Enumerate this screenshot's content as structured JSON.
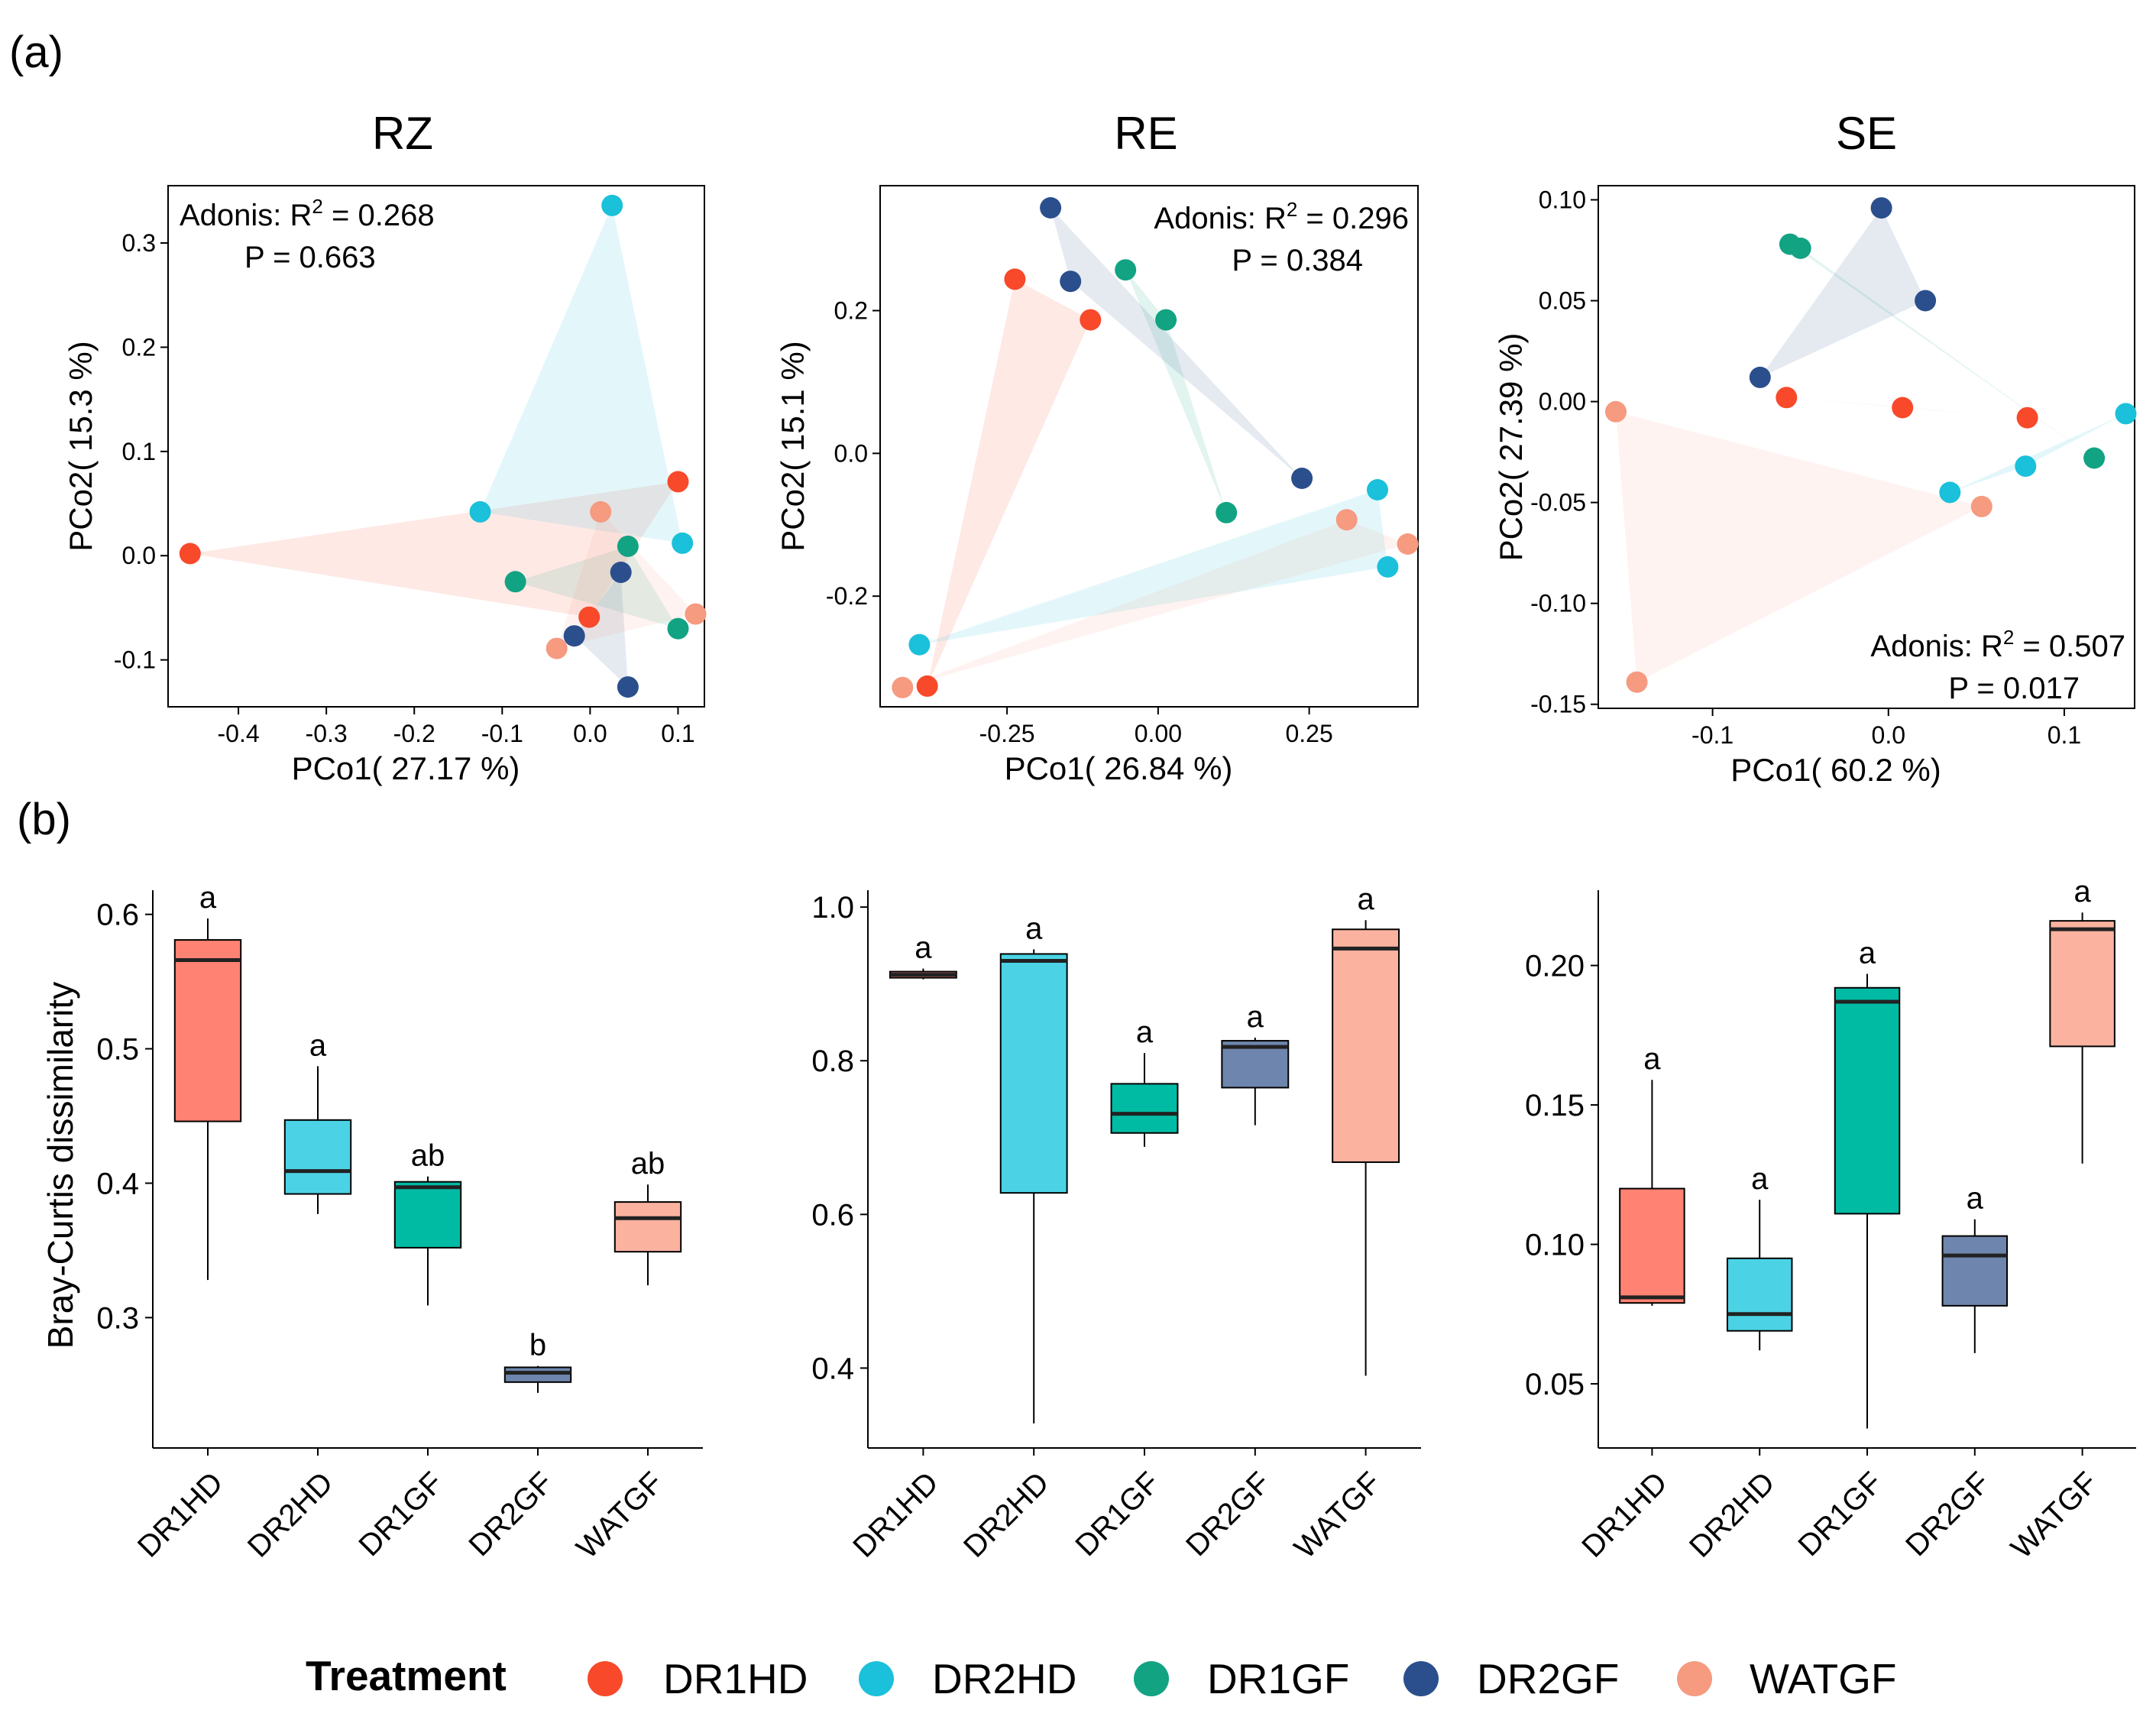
{
  "panel_labels": {
    "a": "(a)",
    "b": "(b)"
  },
  "legend": {
    "title": "Treatment",
    "entries": [
      "DR1HD",
      "DR2HD",
      "DR1GF",
      "DR2GF",
      "WATGF"
    ]
  },
  "colors": {
    "DR1HD": "#F8492B",
    "DR2HD": "#1BC0DA",
    "DR1GF": "#12A383",
    "DR2GF": "#2A4F8C",
    "WATGF": "#F69A80"
  },
  "box_colors": {
    "DR1HD": "#FF8272",
    "DR2HD": "#4BD3E5",
    "DR1GF": "#00BBA4",
    "DR2GF": "#6E86AD",
    "WATGF": "#FBB3A0"
  },
  "chart_data": [
    {
      "id": "pcoa-RZ",
      "type": "scatter",
      "title": "RZ",
      "xlabel": "PCo1( 27.17 %)",
      "ylabel": "PCo2( 15.3 %)",
      "xlim": [
        -0.48,
        0.13
      ],
      "ylim": [
        -0.145,
        0.355
      ],
      "xticks": [
        -0.4,
        -0.3,
        -0.2,
        -0.1,
        0.0,
        0.1
      ],
      "xtick_labels": [
        "-0.4",
        "-0.3",
        "-0.2",
        "-0.1",
        "0.0",
        "0.1"
      ],
      "yticks": [
        -0.1,
        0.0,
        0.1,
        0.2,
        0.3
      ],
      "ytick_labels": [
        "-0.1",
        "0.0",
        "0.1",
        "0.2",
        "0.3"
      ],
      "annotation": {
        "stat_label": "Adonis: R",
        "stat_exp": "2",
        "stat_value": " = 0.268",
        "p_text": "P = 0.663",
        "position": "top-left"
      },
      "series": [
        {
          "name": "DR1HD",
          "points": [
            [
              -0.455,
              0.002
            ],
            [
              0.1,
              0.071
            ],
            [
              -0.001,
              -0.059
            ]
          ]
        },
        {
          "name": "DR2HD",
          "points": [
            [
              0.025,
              0.336
            ],
            [
              -0.125,
              0.042
            ],
            [
              0.105,
              0.012
            ]
          ]
        },
        {
          "name": "DR1GF",
          "points": [
            [
              -0.085,
              -0.025
            ],
            [
              0.043,
              0.009
            ],
            [
              0.1,
              -0.07
            ]
          ]
        },
        {
          "name": "DR2GF",
          "points": [
            [
              0.035,
              -0.016
            ],
            [
              -0.018,
              -0.077
            ],
            [
              0.043,
              -0.126
            ]
          ]
        },
        {
          "name": "WATGF",
          "points": [
            [
              0.012,
              0.042
            ],
            [
              0.12,
              -0.056
            ],
            [
              -0.038,
              -0.089
            ]
          ]
        }
      ]
    },
    {
      "id": "pcoa-RE",
      "type": "scatter",
      "title": "RE",
      "xlabel": "PCo1( 26.84 %)",
      "ylabel": "PCo2( 15.1 %)",
      "xlim": [
        -0.46,
        0.43
      ],
      "ylim": [
        -0.355,
        0.375
      ],
      "xticks": [
        -0.25,
        0.0,
        0.25
      ],
      "xtick_labels": [
        "-0.25",
        "0.00",
        "0.25"
      ],
      "yticks": [
        -0.2,
        0.0,
        0.2
      ],
      "ytick_labels": [
        "-0.2",
        "0.0",
        "0.2"
      ],
      "annotation": {
        "stat_label": "Adonis: R",
        "stat_exp": "2",
        "stat_value": " = 0.296",
        "p_text": "P = 0.384",
        "position": "top-right"
      },
      "series": [
        {
          "name": "DR1HD",
          "points": [
            [
              -0.237,
              0.244
            ],
            [
              -0.112,
              0.187
            ],
            [
              -0.382,
              -0.326
            ]
          ]
        },
        {
          "name": "DR2HD",
          "points": [
            [
              -0.395,
              -0.268
            ],
            [
              0.363,
              -0.051
            ],
            [
              0.38,
              -0.159
            ]
          ]
        },
        {
          "name": "DR1GF",
          "points": [
            [
              -0.054,
              0.257
            ],
            [
              0.013,
              0.187
            ],
            [
              0.113,
              -0.083
            ]
          ]
        },
        {
          "name": "DR2GF",
          "points": [
            [
              -0.178,
              0.344
            ],
            [
              -0.145,
              0.241
            ],
            [
              0.238,
              -0.035
            ]
          ]
        },
        {
          "name": "WATGF",
          "points": [
            [
              -0.423,
              -0.328
            ],
            [
              0.312,
              -0.093
            ],
            [
              0.413,
              -0.127
            ]
          ]
        }
      ]
    },
    {
      "id": "pcoa-SE",
      "type": "scatter",
      "title": "SE",
      "xlabel": "PCo1( 60.2 %)",
      "ylabel": "PCo2( 27.39 %)",
      "xlim": [
        -0.165,
        0.14
      ],
      "ylim": [
        -0.152,
        0.107
      ],
      "xticks": [
        -0.1,
        0.0,
        0.1
      ],
      "xtick_labels": [
        "-0.1",
        "0.0",
        "0.1"
      ],
      "yticks": [
        -0.15,
        -0.1,
        -0.05,
        0.0,
        0.05,
        0.1
      ],
      "ytick_labels": [
        "-0.15",
        "-0.10",
        "-0.05",
        "0.00",
        "0.05",
        "0.10"
      ],
      "annotation": {
        "stat_label": "Adonis: R",
        "stat_exp": "2",
        "stat_value": " = 0.507",
        "p_text": "P = 0.017",
        "position": "bottom-right"
      },
      "series": [
        {
          "name": "DR1HD",
          "points": [
            [
              -0.058,
              0.002
            ],
            [
              0.008,
              -0.003
            ],
            [
              0.079,
              -0.008
            ]
          ]
        },
        {
          "name": "DR2HD",
          "points": [
            [
              0.035,
              -0.045
            ],
            [
              0.078,
              -0.032
            ],
            [
              0.135,
              -0.006
            ]
          ]
        },
        {
          "name": "DR1GF",
          "points": [
            [
              -0.056,
              0.078
            ],
            [
              -0.05,
              0.076
            ],
            [
              0.117,
              -0.028
            ]
          ]
        },
        {
          "name": "DR2GF",
          "points": [
            [
              -0.004,
              0.096
            ],
            [
              0.021,
              0.05
            ],
            [
              -0.073,
              0.012
            ]
          ]
        },
        {
          "name": "WATGF",
          "points": [
            [
              -0.155,
              -0.005
            ],
            [
              -0.143,
              -0.139
            ],
            [
              0.053,
              -0.052
            ]
          ]
        }
      ]
    },
    {
      "id": "box-RZ",
      "type": "box",
      "ylabel": "Bray-Curtis dissimilarity",
      "ylim": [
        0.203,
        0.618
      ],
      "yticks": [
        0.3,
        0.4,
        0.5,
        0.6
      ],
      "ytick_labels": [
        "0.3",
        "0.4",
        "0.5",
        "0.6"
      ],
      "categories": [
        "DR1HD",
        "DR2HD",
        "DR1GF",
        "DR2GF",
        "WATGF"
      ],
      "boxes": [
        {
          "min": 0.328,
          "q1": 0.446,
          "median": 0.566,
          "q3": 0.581,
          "max": 0.597,
          "letter": "a"
        },
        {
          "min": 0.377,
          "q1": 0.392,
          "median": 0.409,
          "q3": 0.447,
          "max": 0.487,
          "letter": "a"
        },
        {
          "min": 0.309,
          "q1": 0.352,
          "median": 0.397,
          "q3": 0.401,
          "max": 0.405,
          "letter": "ab"
        },
        {
          "min": 0.244,
          "q1": 0.252,
          "median": 0.259,
          "q3": 0.263,
          "max": 0.264,
          "letter": "b"
        },
        {
          "min": 0.324,
          "q1": 0.349,
          "median": 0.374,
          "q3": 0.386,
          "max": 0.399,
          "letter": "ab"
        }
      ]
    },
    {
      "id": "box-RE",
      "type": "box",
      "ylabel": "",
      "ylim": [
        0.296,
        1.022
      ],
      "yticks": [
        0.4,
        0.6,
        0.8,
        1.0
      ],
      "ytick_labels": [
        "0.4",
        "0.6",
        "0.8",
        "1.0"
      ],
      "categories": [
        "DR1HD",
        "DR2HD",
        "DR1GF",
        "DR2GF",
        "WATGF"
      ],
      "boxes": [
        {
          "min": 0.906,
          "q1": 0.908,
          "median": 0.912,
          "q3": 0.916,
          "max": 0.92,
          "letter": "a"
        },
        {
          "min": 0.328,
          "q1": 0.628,
          "median": 0.93,
          "q3": 0.939,
          "max": 0.945,
          "letter": "a"
        },
        {
          "min": 0.688,
          "q1": 0.706,
          "median": 0.731,
          "q3": 0.77,
          "max": 0.81,
          "letter": "a"
        },
        {
          "min": 0.716,
          "q1": 0.765,
          "median": 0.818,
          "q3": 0.826,
          "max": 0.83,
          "letter": "a"
        },
        {
          "min": 0.39,
          "q1": 0.668,
          "median": 0.946,
          "q3": 0.971,
          "max": 0.983,
          "letter": "a"
        }
      ]
    },
    {
      "id": "box-SE",
      "type": "box",
      "ylabel": "",
      "ylim": [
        0.027,
        0.227
      ],
      "yticks": [
        0.05,
        0.1,
        0.15,
        0.2
      ],
      "ytick_labels": [
        "0.05",
        "0.10",
        "0.15",
        "0.20"
      ],
      "categories": [
        "DR1HD",
        "DR2HD",
        "DR1GF",
        "DR2GF",
        "WATGF"
      ],
      "boxes": [
        {
          "min": 0.078,
          "q1": 0.079,
          "median": 0.081,
          "q3": 0.12,
          "max": 0.159,
          "letter": "a"
        },
        {
          "min": 0.062,
          "q1": 0.069,
          "median": 0.075,
          "q3": 0.095,
          "max": 0.116,
          "letter": "a"
        },
        {
          "min": 0.034,
          "q1": 0.111,
          "median": 0.187,
          "q3": 0.192,
          "max": 0.197,
          "letter": "a"
        },
        {
          "min": 0.061,
          "q1": 0.078,
          "median": 0.096,
          "q3": 0.103,
          "max": 0.109,
          "letter": "a"
        },
        {
          "min": 0.129,
          "q1": 0.171,
          "median": 0.213,
          "q3": 0.216,
          "max": 0.219,
          "letter": "a"
        }
      ]
    }
  ]
}
